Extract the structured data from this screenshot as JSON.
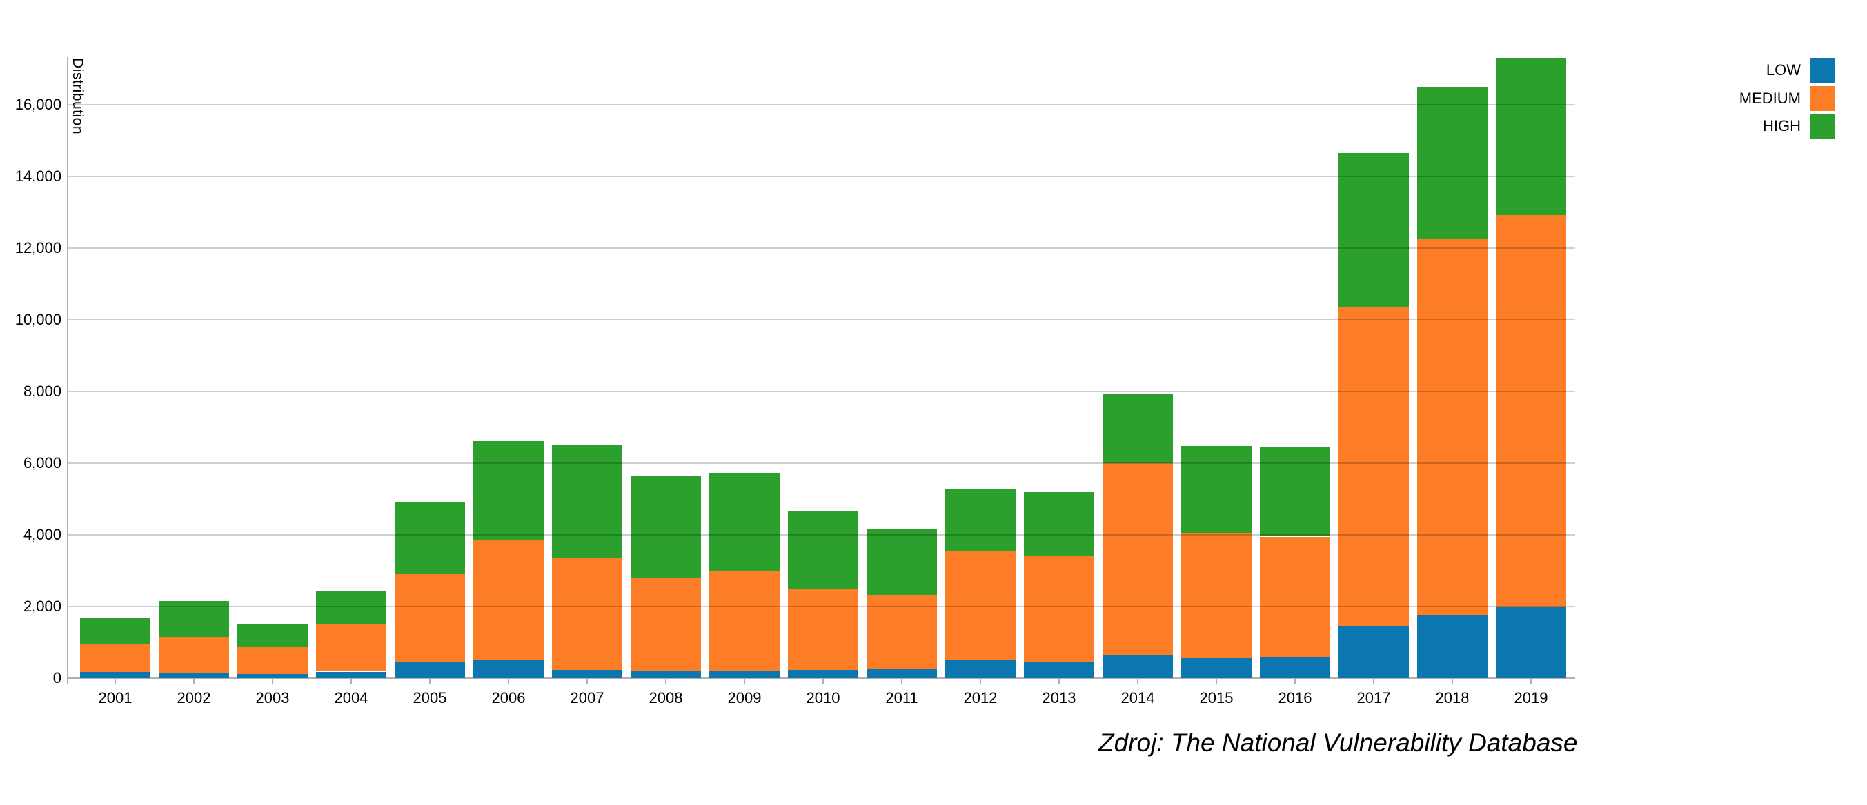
{
  "caption": "Zdroj: The National Vulnerability Database",
  "y_axis": {
    "title": "Distribution",
    "tick_labels": [
      "0",
      "2,000",
      "4,000",
      "6,000",
      "8,000",
      "10,000",
      "12,000",
      "14,000",
      "16,000"
    ]
  },
  "legend": {
    "items": [
      {
        "label": "LOW",
        "color": "#0b76af"
      },
      {
        "label": "MEDIUM",
        "color": "#fd7d26"
      },
      {
        "label": "HIGH",
        "color": "#2ba02c"
      }
    ]
  },
  "chart_data": {
    "type": "bar",
    "stacked": true,
    "title": "",
    "xlabel": "",
    "ylabel": "Distribution",
    "ylim": [
      0,
      17400
    ],
    "ytick_step": 2000,
    "grid": true,
    "legend_position": "top-right",
    "categories": [
      "2001",
      "2002",
      "2003",
      "2004",
      "2005",
      "2006",
      "2007",
      "2008",
      "2009",
      "2010",
      "2011",
      "2012",
      "2013",
      "2014",
      "2015",
      "2016",
      "2017",
      "2018",
      "2019"
    ],
    "series": [
      {
        "name": "LOW",
        "color": "#0b76af",
        "values": [
          177,
          159,
          111,
          182,
          455,
          498,
          229,
          184,
          187,
          237,
          253,
          499,
          471,
          659,
          571,
          604,
          1449,
          1758,
          1981
        ]
      },
      {
        "name": "MEDIUM",
        "color": "#fd7d26",
        "values": [
          768,
          994,
          751,
          1322,
          2448,
          3367,
          3121,
          2596,
          2787,
          2266,
          2062,
          3033,
          2961,
          5346,
          3468,
          3348,
          8917,
          10486,
          10942
        ]
      },
      {
        "name": "HIGH",
        "color": "#2ba02c",
        "values": [
          732,
          1003,
          665,
          947,
          2030,
          2745,
          3159,
          2853,
          2760,
          2150,
          1841,
          1737,
          1760,
          1935,
          2442,
          2495,
          4280,
          4256,
          4385
        ]
      }
    ]
  }
}
